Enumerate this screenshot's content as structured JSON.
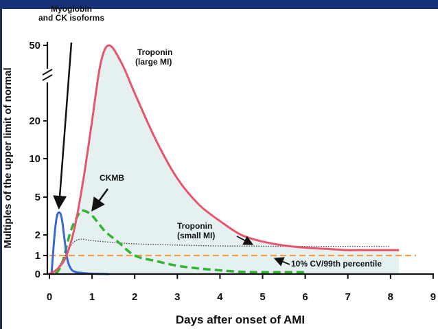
{
  "theme": {
    "bar_color": "#14317a",
    "fill_color": "#e4f1f0"
  },
  "chart_data": {
    "type": "line",
    "title": "",
    "xlabel": "Days after onset of AMI",
    "ylabel": "Multiples of the upper limit of normal",
    "xlim": [
      0,
      9
    ],
    "y_ticks": [
      0,
      1,
      2,
      5,
      10,
      20,
      50
    ],
    "x_ticks": [
      0,
      1,
      2,
      3,
      4,
      5,
      6,
      7,
      8,
      9
    ],
    "y_axis_break": "between 20 and 50",
    "grid": false,
    "series": [
      {
        "name": "Troponin (large MI)",
        "color": "#e8546b",
        "style": "solid",
        "x": [
          0.0,
          0.2,
          0.4,
          0.6,
          0.8,
          1.0,
          1.2,
          1.4,
          1.7,
          2.0,
          2.5,
          3.0,
          3.5,
          4.0,
          4.5,
          5.0,
          5.5,
          6.0,
          6.5,
          7.0,
          7.5,
          8.0,
          8.2
        ],
        "y": [
          0,
          0.3,
          1.0,
          2.5,
          7,
          20,
          40,
          50,
          40,
          28,
          14,
          7,
          4.2,
          2.8,
          2.0,
          1.6,
          1.4,
          1.3,
          1.25,
          1.2,
          1.2,
          1.2,
          1.2
        ]
      },
      {
        "name": "Troponin (small MI)",
        "color": "#444444",
        "style": "dotted",
        "x": [
          0.1,
          0.3,
          0.5,
          0.7,
          1.0,
          1.5,
          2.0,
          3.0,
          4.0,
          5.0,
          6.0,
          7.0,
          8.0
        ],
        "y": [
          0,
          0.7,
          1.4,
          1.72,
          1.65,
          1.55,
          1.48,
          1.42,
          1.38,
          1.37,
          1.36,
          1.36,
          1.35
        ]
      },
      {
        "name": "CKMB",
        "color": "#33b333",
        "style": "dashed",
        "x": [
          0.15,
          0.3,
          0.5,
          0.7,
          0.8,
          1.0,
          1.3,
          1.6,
          2.0,
          2.5,
          3.0,
          3.5,
          4.0,
          4.5,
          5.0,
          5.5,
          6.0
        ],
        "y": [
          0,
          0.6,
          2.2,
          3.4,
          3.6,
          3.2,
          2.2,
          1.6,
          1.0,
          0.7,
          0.45,
          0.3,
          0.2,
          0.12,
          0.1,
          0.1,
          0.1
        ]
      },
      {
        "name": "Myoglobin and CK isoforms",
        "color": "#3a67d8",
        "style": "solid",
        "x": [
          0.05,
          0.12,
          0.18,
          0.25,
          0.3,
          0.35,
          0.42,
          0.5,
          0.6,
          0.8,
          1.0,
          1.4
        ],
        "y": [
          0,
          2.0,
          3.2,
          3.4,
          2.8,
          1.8,
          0.8,
          0.3,
          0.12,
          0.05,
          0.02,
          0.0
        ]
      },
      {
        "name": "10% CV/99th percentile",
        "color": "#f0a050",
        "style": "dashed",
        "x": [
          0,
          8.6
        ],
        "y": [
          1,
          1
        ]
      }
    ],
    "annotations": {
      "myoglobin": [
        "Myoglobin",
        "and CK isoforms"
      ],
      "troponin_large": [
        "Troponin",
        "(large MI)"
      ],
      "ckmb": [
        "CKMB"
      ],
      "troponin_small": [
        "Troponin",
        "(small MI)"
      ],
      "percentile": [
        "10% CV/99th percentile"
      ]
    }
  }
}
